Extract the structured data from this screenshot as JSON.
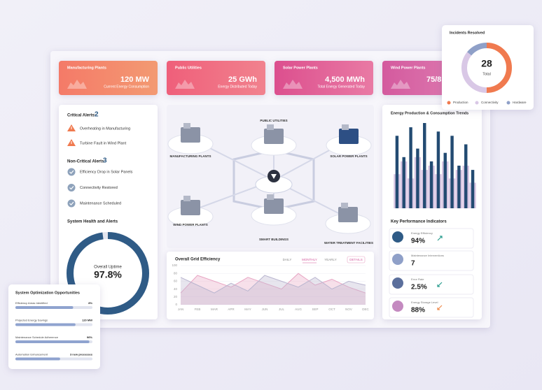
{
  "cards": [
    {
      "title": "Manufacturing Plants",
      "value": "120 MW",
      "subtitle": "Current Energy Consumption",
      "colors": [
        "#f47a68",
        "#f39a72"
      ]
    },
    {
      "title": "Public Utilities",
      "value": "25 GWh",
      "subtitle": "Energy Distributed Today",
      "colors": [
        "#ef5f7a",
        "#f1828e"
      ]
    },
    {
      "title": "Solar Power Plants",
      "value": "4,500 MWh",
      "subtitle": "Total Energy Generated Today",
      "colors": [
        "#dc4f8e",
        "#e97aa4"
      ]
    },
    {
      "title": "Wind Power Plants",
      "value": "75/8",
      "colors": [
        "#d45a9e",
        "#df82b4"
      ]
    }
  ],
  "alerts": {
    "critical_title": "Critical Alerts:",
    "critical_count": "2",
    "critical": [
      "Overheating in Manufacturing",
      "Turbine Fault in Wind Plant"
    ],
    "noncritical_title": "Non-Critical Alerts:",
    "noncritical_count": "3",
    "noncritical": [
      "Efficiency Drop in Solar Panels",
      "Connectivity Restored",
      "Maintenance Scheduled"
    ]
  },
  "health": {
    "title": "System Health and Alerts",
    "label": "Overall Uptime",
    "value": 97.8,
    "value_label": "97.8%",
    "color": "#2f5b86"
  },
  "map": {
    "nodes": [
      "MANUFACTURING PLANTS",
      "PUBLIC UTILITIES",
      "SOLAR POWER PLANTS",
      "WIND POWER PLANTS",
      "SMART BUILDINGS",
      "WATER TREATMENT FACILITIES"
    ]
  },
  "grid_chart": {
    "type": "area",
    "title": "Overall Grid Efficiency",
    "tabs": [
      "DAILY",
      "MONTHLY",
      "YEARLY"
    ],
    "active_tab": 1,
    "button": "DETAILS",
    "categories": [
      "JAN",
      "FEB",
      "MAR",
      "APR",
      "MAY",
      "JUN",
      "JUL",
      "AUG",
      "SEP",
      "OCT",
      "NOV",
      "DEC"
    ],
    "series": [
      {
        "color": "#e8a6c4",
        "values": [
          30,
          75,
          60,
          45,
          70,
          55,
          40,
          80,
          50,
          65,
          45,
          30
        ]
      },
      {
        "color": "#b9b5cf",
        "values": [
          70,
          50,
          30,
          55,
          35,
          75,
          60,
          45,
          70,
          40,
          60,
          50
        ]
      }
    ],
    "ylim": [
      0,
      100
    ],
    "yticks": [
      0,
      20,
      40,
      60,
      80,
      100
    ],
    "grid": true
  },
  "trend_chart": {
    "type": "bar",
    "title": "Energy Production & Consumption Trends",
    "series": [
      {
        "color": "#d8c6e3",
        "values": [
          40,
          55,
          35,
          60,
          45,
          50,
          40,
          55,
          35,
          45,
          50,
          30
        ]
      },
      {
        "color": "#234b72",
        "values": [
          85,
          60,
          95,
          70,
          100,
          55,
          90,
          65,
          85,
          50,
          75,
          45
        ]
      }
    ],
    "ylim": [
      0,
      100
    ]
  },
  "kpi": {
    "title": "Key Performance Indicators",
    "items": [
      {
        "label": "Energy Efficiency",
        "value": "94%",
        "trend": "up",
        "color": "#2a9d8f"
      },
      {
        "label": "Maintenance Interventions",
        "value": "7"
      },
      {
        "label": "Error Rate",
        "value": "2.5%",
        "trend": "down",
        "color": "#2a9d8f"
      },
      {
        "label": "Energy Storage Level",
        "value": "88%",
        "trend": "down",
        "color": "#f08a4b"
      }
    ]
  },
  "incidents": {
    "type": "pie",
    "title": "Incidents Resolved",
    "total": "28",
    "total_label": "Total",
    "categories": [
      "Production",
      "Connectivity",
      "Hardware"
    ],
    "values": [
      14,
      10,
      4
    ],
    "colors": [
      "#f07a4f",
      "#d9c8e6",
      "#8fa0c8"
    ]
  },
  "optimization": {
    "title": "System Optimization Opportunities",
    "items": [
      {
        "label": "Efficiency Areas Identified",
        "value": "8%",
        "progress": 75
      },
      {
        "label": "Projected Energy Savings",
        "value": "120 MW",
        "progress": 78
      },
      {
        "label": "Maintenance Schedule Adherence",
        "value": "96%",
        "progress": 96
      },
      {
        "label": "Automation Enhancement",
        "value": "3 new processes",
        "progress": 58
      }
    ]
  }
}
